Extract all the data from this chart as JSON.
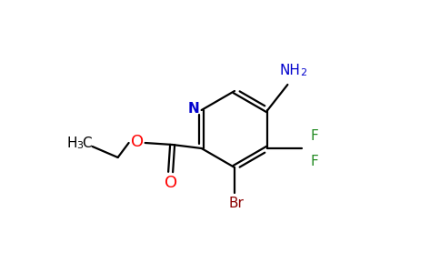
{
  "background_color": "#ffffff",
  "atom_colors": {
    "C": "#000000",
    "N": "#0000cd",
    "O": "#ff0000",
    "Br": "#8B0000",
    "F": "#228B22",
    "NH2": "#0000cd"
  },
  "figsize": [
    4.84,
    3.0
  ],
  "dpi": 100,
  "lw": 1.6
}
